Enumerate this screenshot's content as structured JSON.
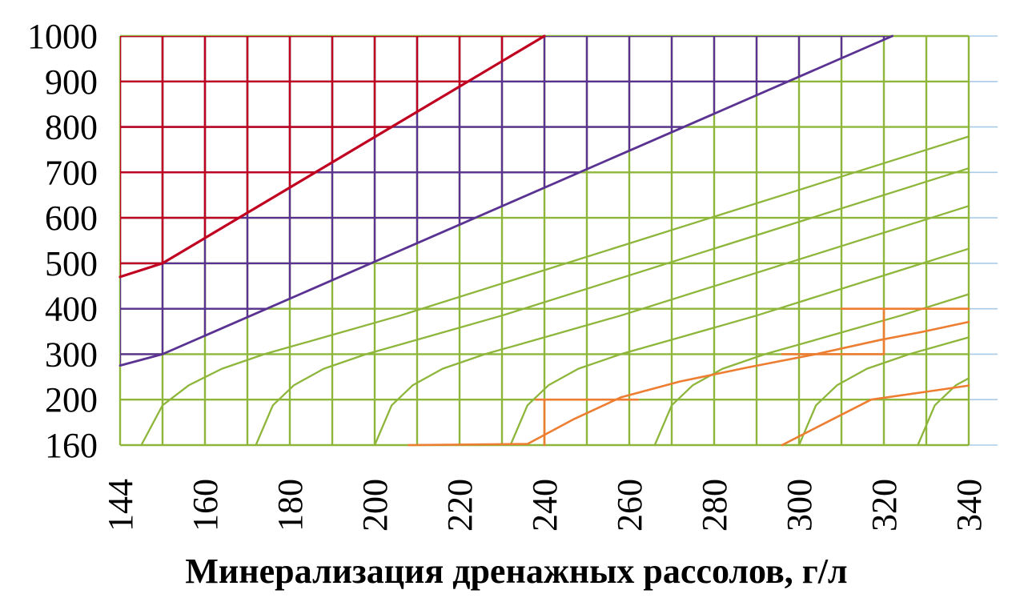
{
  "chart_data": {
    "type": "line",
    "title": "",
    "xlabel": "Минерализация дренажных рассолов, г/л",
    "ylabel": "",
    "x_ticks": [
      144,
      160,
      180,
      200,
      220,
      240,
      260,
      280,
      300,
      320,
      340
    ],
    "y_ticks": [
      160,
      200,
      300,
      400,
      500,
      600,
      700,
      800,
      900,
      1000
    ],
    "x_minor_divisions_per_interval": 2,
    "grid": "on",
    "axis_note": "both axes are category-spaced (equal pixel step per labelled tick)",
    "colors": {
      "red": "#c00020",
      "violet": "#5a3291",
      "green": "#8db63b",
      "orange": "#ed7d31",
      "blue_grid": "#a9cbe8",
      "text": "#000000",
      "background": "#ffffff"
    },
    "red_boundary": [
      [
        144,
        470
      ],
      [
        152,
        500
      ],
      [
        240,
        1000
      ]
    ],
    "violet_boundary": [
      [
        144,
        275
      ],
      [
        152,
        300
      ],
      [
        322,
        1000
      ]
    ],
    "green_curves": [
      [
        [
          148,
          160
        ],
        [
          152,
          195
        ],
        [
          157,
          232
        ],
        [
          164,
          268
        ],
        [
          174,
          300
        ],
        [
          188,
          337
        ],
        [
          206,
          385
        ],
        [
          340,
          779
        ]
      ],
      [
        [
          172,
          160
        ],
        [
          176,
          195
        ],
        [
          181,
          232
        ],
        [
          188,
          268
        ],
        [
          198,
          300
        ],
        [
          212,
          337
        ],
        [
          230,
          385
        ],
        [
          340,
          709
        ]
      ],
      [
        [
          200,
          160
        ],
        [
          204,
          195
        ],
        [
          209,
          232
        ],
        [
          216,
          268
        ],
        [
          226,
          300
        ],
        [
          240,
          337
        ],
        [
          258,
          385
        ],
        [
          340,
          626
        ]
      ],
      [
        [
          232,
          160
        ],
        [
          236,
          195
        ],
        [
          241,
          232
        ],
        [
          248,
          268
        ],
        [
          258,
          300
        ],
        [
          272,
          337
        ],
        [
          290,
          385
        ],
        [
          340,
          532
        ]
      ],
      [
        [
          266,
          160
        ],
        [
          270,
          195
        ],
        [
          275,
          232
        ],
        [
          282,
          268
        ],
        [
          292,
          300
        ],
        [
          306,
          337
        ],
        [
          324,
          385
        ],
        [
          340,
          432
        ]
      ],
      [
        [
          300,
          160
        ],
        [
          304,
          195
        ],
        [
          309,
          232
        ],
        [
          316,
          268
        ],
        [
          326,
          300
        ],
        [
          340,
          337
        ]
      ],
      [
        [
          328,
          160
        ],
        [
          332,
          195
        ],
        [
          337,
          232
        ],
        [
          340,
          247
        ]
      ]
    ],
    "orange_lines": [
      [
        [
          208,
          160
        ],
        [
          236,
          161
        ],
        [
          247,
          183
        ],
        [
          258,
          205
        ],
        [
          272,
          240
        ],
        [
          288,
          271
        ],
        [
          304,
          300
        ],
        [
          319,
          331
        ],
        [
          329,
          349
        ],
        [
          340,
          371
        ]
      ],
      [
        [
          296,
          160
        ],
        [
          307,
          181
        ],
        [
          317,
          200
        ],
        [
          329,
          216
        ],
        [
          340,
          231
        ]
      ],
      [
        [
          310,
          400
        ],
        [
          340,
          400
        ]
      ],
      [
        [
          296,
          300
        ],
        [
          320,
          300
        ]
      ],
      [
        [
          238,
          200
        ],
        [
          262,
          200
        ]
      ],
      [
        [
          240,
          160
        ],
        [
          240,
          200
        ]
      ],
      [
        [
          320,
          300
        ],
        [
          320,
          400
        ]
      ]
    ],
    "regions": [
      {
        "name": "red-zone",
        "description": "upper-left region, red grid above red boundary line"
      },
      {
        "name": "violet-zone",
        "description": "middle band, violet grid between red and violet boundary lines"
      },
      {
        "name": "green-zone",
        "description": "lower-right region, green grid with family of green curves"
      },
      {
        "name": "orange-zone",
        "description": "bottom-right orange curve family and recolored grid segments"
      }
    ]
  }
}
